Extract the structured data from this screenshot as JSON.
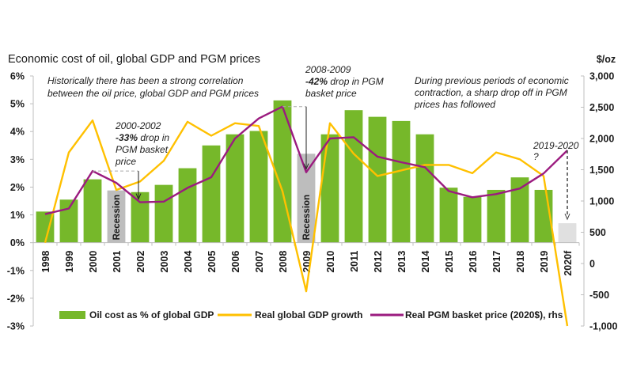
{
  "chart_data": {
    "type": "bar",
    "title": "Economic cost of oil, global GDP and PGM prices",
    "categories": [
      "1998",
      "1999",
      "2000",
      "2001",
      "2002",
      "2003",
      "2004",
      "2005",
      "2006",
      "2007",
      "2008",
      "2009",
      "2010",
      "2011",
      "2012",
      "2013",
      "2014",
      "2015",
      "2016",
      "2017",
      "2018",
      "2019",
      "2020f"
    ],
    "left_axis": {
      "label": "",
      "ylim": [
        -3,
        6
      ],
      "ticks": [
        "6%",
        "5%",
        "4%",
        "3%",
        "2%",
        "1%",
        "0%",
        "-1%",
        "-2%",
        "-3%"
      ],
      "tick_values": [
        6,
        5,
        4,
        3,
        2,
        1,
        0,
        -1,
        -2,
        -3
      ]
    },
    "right_axis": {
      "label": "$/oz",
      "ylim": [
        -1000,
        3000
      ],
      "ticks": [
        "3,000",
        "2,500",
        "2,000",
        "1,500",
        "1,000",
        "500",
        "0",
        "-500",
        "-1,000"
      ],
      "tick_values": [
        3000,
        2500,
        2000,
        1500,
        1000,
        500,
        0,
        -500,
        -1000
      ]
    },
    "series": [
      {
        "name": "Oil cost as % of global GDP",
        "type": "bar",
        "axis": "left",
        "color": "#76b82a",
        "values": [
          1.12,
          1.55,
          2.28,
          1.88,
          1.82,
          2.08,
          2.68,
          3.5,
          3.9,
          4.02,
          5.12,
          3.2,
          3.9,
          4.77,
          4.53,
          4.38,
          3.9,
          1.98,
          1.65,
          1.9,
          2.35,
          1.9,
          0.7
        ],
        "highlight": {
          "2001": "#bdbdbd",
          "2009": "#bdbdbd",
          "2020f": "#e0e0e0"
        }
      },
      {
        "name": "Real global GDP growth",
        "type": "line",
        "axis": "left",
        "color": "#ffc000",
        "values": [
          0.0,
          3.25,
          4.4,
          1.9,
          2.2,
          2.95,
          4.35,
          3.85,
          4.3,
          4.2,
          1.85,
          -1.75,
          4.3,
          3.2,
          2.4,
          2.6,
          2.8,
          2.8,
          2.5,
          3.25,
          3.0,
          2.4,
          -3.0
        ]
      },
      {
        "name": "Real PGM basket price (2020$), rhs",
        "type": "line",
        "axis": "right",
        "color": "#9b1b7f",
        "values": [
          790,
          880,
          1480,
          1290,
          980,
          990,
          1210,
          1380,
          2000,
          2320,
          2510,
          1460,
          2000,
          2020,
          1710,
          1620,
          1540,
          1160,
          1060,
          1110,
          1200,
          1440,
          1810
        ]
      }
    ],
    "annotations": [
      {
        "id": "hist",
        "lines": [
          "Historically there has been a strong correlation",
          "between the oil price, global GDP and PGM prices"
        ]
      },
      {
        "id": "a2000",
        "lines": [
          "2000-2002",
          "drop in",
          "PGM basket",
          "price"
        ],
        "bold": "-33%"
      },
      {
        "id": "a2008",
        "lines": [
          "2008-2009",
          "drop in PGM",
          "basket price"
        ],
        "bold": "-42%"
      },
      {
        "id": "contraction",
        "lines": [
          "During previous periods of economic",
          "contraction, a sharp drop off in PGM",
          "prices has followed"
        ]
      },
      {
        "id": "a2019",
        "lines": [
          "2019-2020",
          "?"
        ]
      }
    ],
    "recession_label": "Recession",
    "legend": {
      "placement": "bottom",
      "items": [
        "Oil cost as % of global GDP",
        "Real global GDP growth",
        "Real PGM basket price (2020$), rhs"
      ]
    },
    "grid": false
  }
}
